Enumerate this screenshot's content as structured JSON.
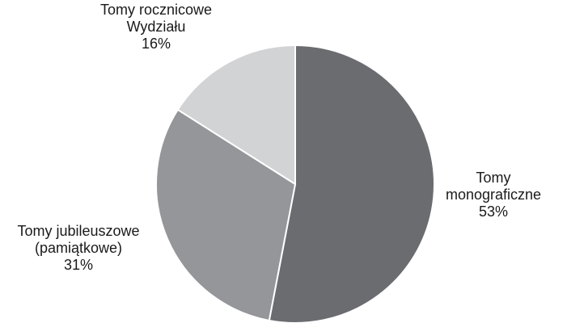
{
  "chart_data": {
    "type": "pie",
    "title": "",
    "slices": [
      {
        "label_lines": [
          "Tomy",
          "monograficzne"
        ],
        "value": 53,
        "value_label": "53%",
        "color": "#6b6c70"
      },
      {
        "label_lines": [
          "Tomy jubileuszowe",
          "(pamiątkowe)"
        ],
        "value": 31,
        "value_label": "31%",
        "color": "#959699"
      },
      {
        "label_lines": [
          "Tomy rocznicowe",
          "Wydziału"
        ],
        "value": 16,
        "value_label": "16%",
        "color": "#d2d3d5"
      }
    ],
    "legend": "none",
    "start": "12 o'clock",
    "direction": "clockwise"
  }
}
